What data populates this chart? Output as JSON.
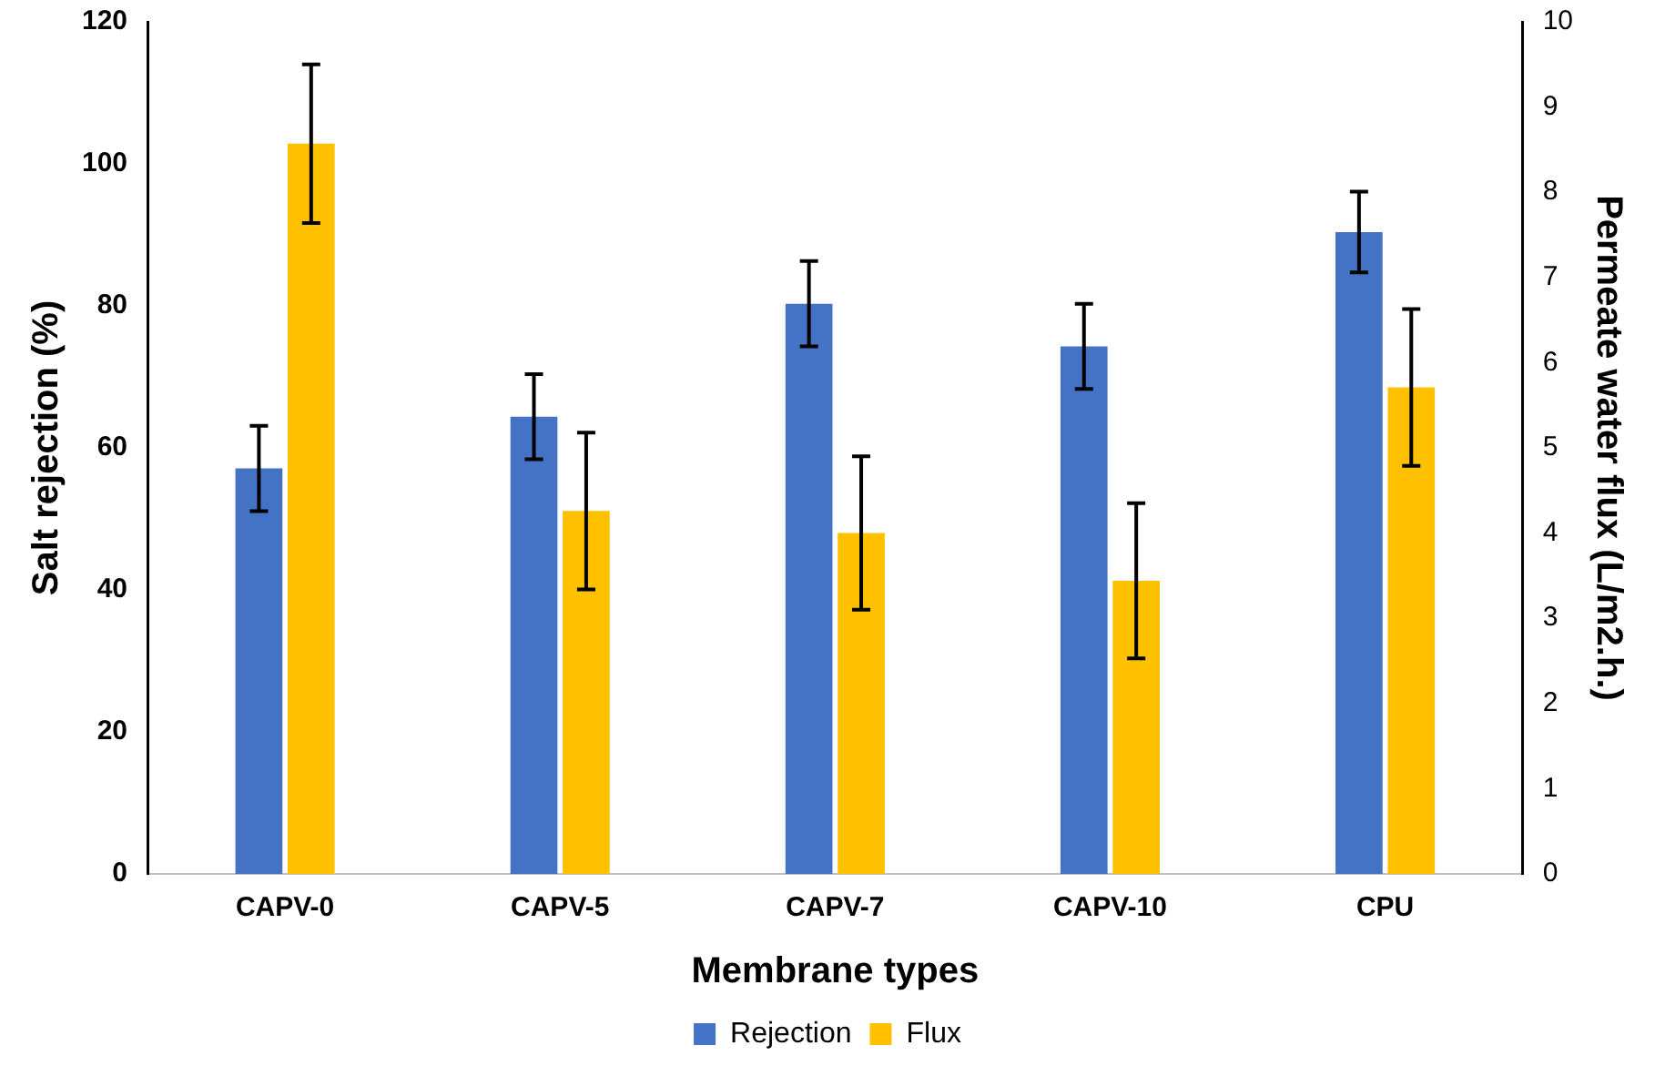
{
  "chart_data": {
    "type": "bar",
    "xlabel": "Membrane types",
    "ylabel": "Salt rejection (%)",
    "y2label": "Permeate water flux (L/m2.h.)",
    "categories": [
      "CAPV-0",
      "CAPV-5",
      "CAPV-7",
      "CAPV-10",
      "CPU"
    ],
    "series": [
      {
        "name": "Rejection",
        "color": "#4472c4",
        "values": [
          57.1,
          64.4,
          80.3,
          74.3,
          90.4
        ],
        "errors": [
          6,
          6,
          6,
          6,
          5.7
        ]
      },
      {
        "name": "Flux",
        "color": "#ffc000",
        "axis": "y2",
        "values": [
          8.57,
          4.26,
          4.0,
          3.44,
          5.71
        ],
        "errors": [
          0.93,
          0.92,
          0.9,
          0.91,
          0.92
        ]
      }
    ],
    "ylim": [
      0,
      120
    ],
    "yticks": [
      0,
      20,
      40,
      60,
      80,
      100,
      120
    ],
    "y2lim": [
      0,
      10
    ],
    "y2ticks": [
      0,
      1,
      2,
      3,
      4,
      5,
      6,
      7,
      8,
      9,
      10
    ],
    "grid": false,
    "legend": "bottom"
  }
}
